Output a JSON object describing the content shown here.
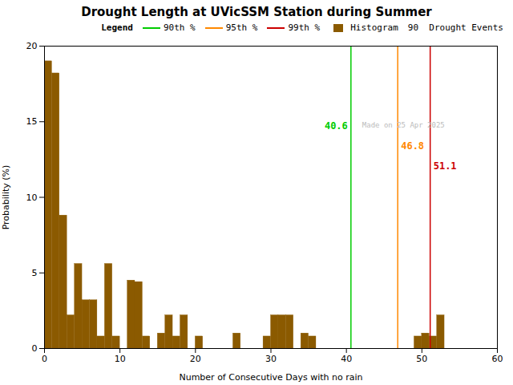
{
  "chart_data": {
    "type": "histogram",
    "title": "Drought Length at UVicSSM Station during Summer",
    "x_label": "Number of Consecutive Days with no rain",
    "y_label": "Probability (%)",
    "bins": [
      0,
      1,
      2,
      3,
      4,
      5,
      6,
      7,
      8,
      9,
      10,
      11,
      12,
      13,
      14,
      15,
      16,
      17,
      18,
      19,
      20,
      21,
      22,
      23,
      24,
      25,
      26,
      27,
      28,
      29,
      30,
      31,
      32,
      33,
      34,
      35,
      36,
      37,
      38,
      39,
      40,
      41,
      42,
      43,
      44,
      45,
      46,
      47,
      48,
      49,
      50,
      51,
      52,
      53,
      54,
      55,
      56,
      57,
      58,
      59
    ],
    "series": [
      {
        "name": "Histogram",
        "type": "histogram",
        "color": "#8B5A00",
        "values": [
          19.0,
          18.2,
          8.8,
          2.2,
          5.6,
          3.2,
          3.2,
          0.8,
          5.6,
          0.8,
          0.0,
          4.5,
          4.4,
          0.8,
          0.0,
          1.0,
          2.2,
          0.8,
          2.2,
          0.0,
          0.8,
          0.0,
          0.0,
          0.0,
          0.0,
          1.0,
          0.0,
          0.0,
          0.0,
          0.8,
          2.2,
          2.2,
          2.2,
          0.0,
          1.0,
          0.8,
          0.0,
          0.0,
          0.0,
          0.0,
          0.0,
          0.0,
          0.0,
          0.0,
          0.0,
          0.0,
          0.0,
          0.0,
          0.0,
          0.8,
          1.0,
          0.8,
          2.2,
          0.0,
          0.0,
          0.0,
          0.0,
          0.0,
          0.0
        ]
      }
    ],
    "vlines": [
      {
        "name": "90th %",
        "x": 40.6,
        "color": "#00cc00"
      },
      {
        "name": "95th %",
        "x": 46.8,
        "color": "#ff8800"
      },
      {
        "name": "99th %",
        "x": 51.1,
        "color": "#cc0000"
      }
    ],
    "watermark": "Made on 25 Apr 2025",
    "legend": "upper right",
    "legend_title": "Legend",
    "legend_note": "90  Drought Events",
    "xlim": [
      0,
      60
    ],
    "ylim": [
      0,
      20
    ],
    "xticks": [
      0,
      10,
      20,
      30,
      40,
      50,
      60
    ],
    "yticks": [
      0,
      5,
      10,
      15,
      20
    ],
    "grid": false
  }
}
